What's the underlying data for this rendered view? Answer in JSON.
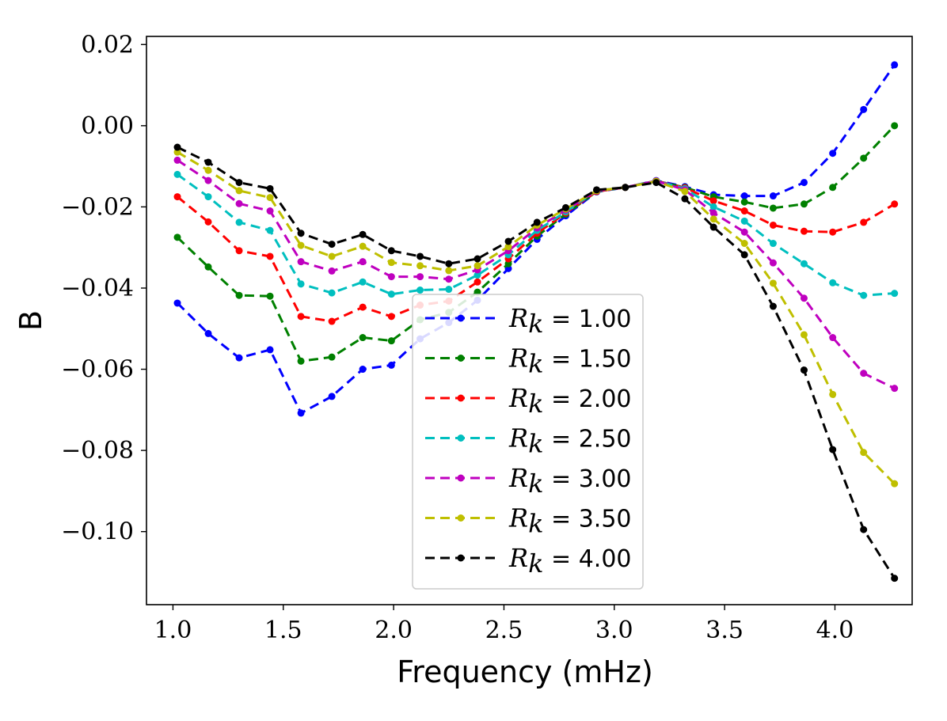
{
  "chart_data": {
    "type": "line",
    "title": "",
    "xlabel": "Frequency (mHz)",
    "ylabel": "B",
    "xlim": [
      0.88,
      4.35
    ],
    "ylim": [
      -0.118,
      0.022
    ],
    "xticks": [
      1.0,
      1.5,
      2.0,
      2.5,
      3.0,
      3.5,
      4.0
    ],
    "xtick_labels": [
      "1.0",
      "1.5",
      "2.0",
      "2.5",
      "3.0",
      "3.5",
      "4.0"
    ],
    "yticks": [
      0.02,
      0.0,
      -0.02,
      -0.04,
      -0.06,
      -0.08,
      -0.1
    ],
    "ytick_labels": [
      "0.02",
      "0.00",
      "−0.02",
      "−0.04",
      "−0.06",
      "−0.08",
      "−0.10"
    ],
    "grid": false,
    "legend_position": "lower-center",
    "legend_prefix": "R",
    "legend_subscript": "k",
    "x": [
      1.02,
      1.16,
      1.3,
      1.44,
      1.58,
      1.72,
      1.86,
      1.99,
      2.12,
      2.25,
      2.38,
      2.52,
      2.65,
      2.78,
      2.92,
      3.05,
      3.19,
      3.32,
      3.45,
      3.59,
      3.72,
      3.86,
      3.99,
      4.13,
      4.27
    ],
    "series": [
      {
        "name": "1.00",
        "label": " = 1.00",
        "color": "#0000ff",
        "values": [
          -0.0437,
          -0.0512,
          -0.0572,
          -0.0552,
          -0.0708,
          -0.0667,
          -0.06,
          -0.059,
          -0.0525,
          -0.0485,
          -0.043,
          -0.0352,
          -0.028,
          -0.0222,
          -0.0163,
          -0.0152,
          -0.0135,
          -0.015,
          -0.017,
          -0.0173,
          -0.0173,
          -0.014,
          -0.0068,
          0.004,
          0.015
        ]
      },
      {
        "name": "1.50",
        "label": " = 1.50",
        "color": "#008000",
        "values": [
          -0.0275,
          -0.0348,
          -0.0418,
          -0.042,
          -0.058,
          -0.057,
          -0.0522,
          -0.053,
          -0.0478,
          -0.046,
          -0.041,
          -0.034,
          -0.0272,
          -0.0218,
          -0.0162,
          -0.0152,
          -0.0136,
          -0.0152,
          -0.0175,
          -0.0188,
          -0.0203,
          -0.0193,
          -0.0152,
          -0.008,
          0.0
        ]
      },
      {
        "name": "2.00",
        "label": " = 2.00",
        "color": "#ff0000",
        "values": [
          -0.0175,
          -0.0237,
          -0.0308,
          -0.0322,
          -0.047,
          -0.0482,
          -0.0447,
          -0.047,
          -0.0442,
          -0.0432,
          -0.0385,
          -0.0328,
          -0.0265,
          -0.0215,
          -0.0162,
          -0.0152,
          -0.0136,
          -0.0153,
          -0.0185,
          -0.021,
          -0.0245,
          -0.026,
          -0.0262,
          -0.0238,
          -0.0193
        ]
      },
      {
        "name": "2.50",
        "label": " = 2.50",
        "color": "#00bfbf",
        "values": [
          -0.012,
          -0.0175,
          -0.0238,
          -0.0258,
          -0.039,
          -0.0412,
          -0.0385,
          -0.0415,
          -0.0405,
          -0.0403,
          -0.0368,
          -0.0318,
          -0.0258,
          -0.0212,
          -0.016,
          -0.0152,
          -0.0136,
          -0.0155,
          -0.02,
          -0.0235,
          -0.029,
          -0.034,
          -0.0387,
          -0.0418,
          -0.0413
        ]
      },
      {
        "name": "3.00",
        "label": " = 3.00",
        "color": "#bf00bf",
        "values": [
          -0.0085,
          -0.0135,
          -0.0192,
          -0.021,
          -0.0335,
          -0.0358,
          -0.0335,
          -0.0372,
          -0.0372,
          -0.0378,
          -0.0355,
          -0.0308,
          -0.0252,
          -0.0208,
          -0.016,
          -0.0152,
          -0.0136,
          -0.0158,
          -0.0215,
          -0.0262,
          -0.0338,
          -0.0425,
          -0.0522,
          -0.061,
          -0.0647
        ]
      },
      {
        "name": "3.50",
        "label": " = 3.50",
        "color": "#bfbf00",
        "values": [
          -0.0065,
          -0.011,
          -0.016,
          -0.0177,
          -0.0295,
          -0.0322,
          -0.0297,
          -0.0337,
          -0.0345,
          -0.0357,
          -0.0345,
          -0.0298,
          -0.0245,
          -0.0205,
          -0.016,
          -0.0152,
          -0.0137,
          -0.0162,
          -0.023,
          -0.029,
          -0.0388,
          -0.0515,
          -0.0662,
          -0.0805,
          -0.0882
        ]
      },
      {
        "name": "4.00",
        "label": " = 4.00",
        "color": "#000000",
        "values": [
          -0.0053,
          -0.009,
          -0.014,
          -0.0155,
          -0.0265,
          -0.0292,
          -0.0268,
          -0.0308,
          -0.0322,
          -0.034,
          -0.0328,
          -0.0285,
          -0.0238,
          -0.0202,
          -0.0158,
          -0.0152,
          -0.014,
          -0.018,
          -0.025,
          -0.0318,
          -0.0445,
          -0.0602,
          -0.0798,
          -0.0995,
          -0.1115
        ]
      }
    ]
  }
}
